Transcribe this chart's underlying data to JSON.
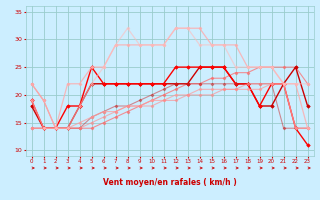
{
  "title": "",
  "xlabel": "Vent moyen/en rafales ( km/h )",
  "ylabel": "",
  "background_color": "#cceeff",
  "grid_color": "#99cccc",
  "x_values": [
    0,
    1,
    2,
    3,
    4,
    5,
    6,
    7,
    8,
    9,
    10,
    11,
    12,
    13,
    14,
    15,
    16,
    17,
    18,
    19,
    20,
    21,
    22,
    23
  ],
  "series": [
    {
      "y": [
        22,
        19,
        14,
        14,
        14,
        14,
        15,
        16,
        17,
        18,
        19,
        20,
        21,
        22,
        22,
        23,
        23,
        24,
        24,
        25,
        25,
        25,
        25,
        22
      ],
      "color": "#ff6666",
      "alpha": 0.7,
      "lw": 0.8,
      "marker": "D",
      "ms": 1.5
    },
    {
      "y": [
        18,
        14,
        14,
        14,
        18,
        22,
        22,
        22,
        22,
        22,
        22,
        22,
        22,
        22,
        25,
        25,
        25,
        22,
        22,
        18,
        18,
        22,
        25,
        18
      ],
      "color": "#cc0000",
      "alpha": 1.0,
      "lw": 1.0,
      "marker": "D",
      "ms": 1.8
    },
    {
      "y": [
        19,
        14,
        14,
        18,
        18,
        25,
        22,
        22,
        22,
        22,
        22,
        22,
        25,
        25,
        25,
        25,
        25,
        22,
        22,
        18,
        22,
        22,
        14,
        11
      ],
      "color": "#ff0000",
      "alpha": 1.0,
      "lw": 1.0,
      "marker": "D",
      "ms": 1.8
    },
    {
      "y": [
        14,
        14,
        14,
        14,
        14,
        16,
        17,
        18,
        18,
        19,
        20,
        21,
        22,
        22,
        22,
        22,
        22,
        22,
        22,
        22,
        22,
        14,
        14,
        14
      ],
      "color": "#cc2222",
      "alpha": 0.5,
      "lw": 0.8,
      "marker": "D",
      "ms": 1.5
    },
    {
      "y": [
        14,
        14,
        14,
        14,
        15,
        16,
        17,
        17,
        18,
        18,
        19,
        19,
        20,
        20,
        21,
        21,
        21,
        21,
        21,
        21,
        22,
        22,
        14,
        14
      ],
      "color": "#ff9999",
      "alpha": 0.7,
      "lw": 0.8,
      "marker": "D",
      "ms": 1.5
    },
    {
      "y": [
        14,
        14,
        14,
        14,
        14,
        15,
        16,
        17,
        18,
        18,
        18,
        19,
        19,
        20,
        20,
        20,
        21,
        21,
        22,
        22,
        22,
        22,
        14,
        14
      ],
      "color": "#ff8888",
      "alpha": 0.6,
      "lw": 0.8,
      "marker": "D",
      "ms": 1.5
    },
    {
      "y": [
        22,
        19,
        14,
        22,
        22,
        25,
        25,
        29,
        29,
        29,
        29,
        29,
        32,
        32,
        32,
        29,
        29,
        29,
        25,
        25,
        25,
        22,
        22,
        14
      ],
      "color": "#ffaaaa",
      "alpha": 0.8,
      "lw": 0.9,
      "marker": "D",
      "ms": 1.5
    },
    {
      "y": [
        19,
        14,
        14,
        14,
        18,
        22,
        25,
        29,
        32,
        29,
        29,
        29,
        32,
        32,
        29,
        29,
        29,
        25,
        25,
        25,
        25,
        22,
        22,
        22
      ],
      "color": "#ffbbbb",
      "alpha": 0.6,
      "lw": 0.9,
      "marker": "D",
      "ms": 1.5
    }
  ],
  "ylim": [
    9,
    36
  ],
  "yticks": [
    10,
    15,
    20,
    25,
    30,
    35
  ],
  "xlim": [
    -0.5,
    23.5
  ],
  "xticks": [
    0,
    1,
    2,
    3,
    4,
    5,
    6,
    7,
    8,
    9,
    10,
    11,
    12,
    13,
    14,
    15,
    16,
    17,
    18,
    19,
    20,
    21,
    22,
    23
  ],
  "arrow_color": "#cc0000",
  "xlabel_color": "#cc0000",
  "tick_color": "#cc0000"
}
